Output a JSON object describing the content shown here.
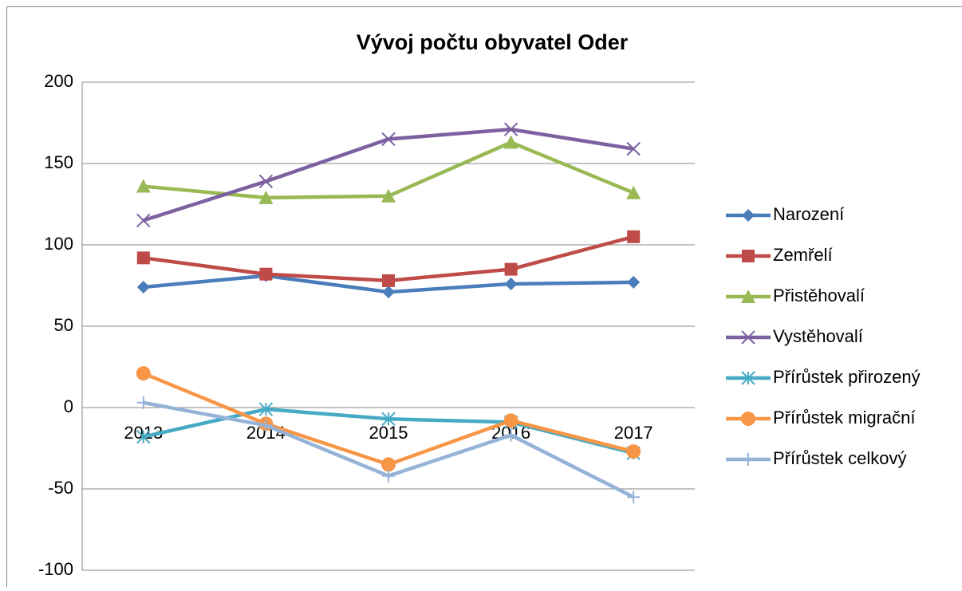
{
  "chart_data": {
    "type": "line",
    "title": "Vývoj počtu obyvatel Oder",
    "categories": [
      "2013",
      "2014",
      "2015",
      "2016",
      "2017"
    ],
    "series": [
      {
        "name": "Narození",
        "color": "#4a7ebb",
        "marker": "diamond",
        "values": [
          74,
          81,
          71,
          76,
          77
        ]
      },
      {
        "name": "Zemřelí",
        "color": "#be4b48",
        "marker": "square",
        "values": [
          92,
          82,
          78,
          85,
          105
        ]
      },
      {
        "name": "Přistěhovalí",
        "color": "#98b954",
        "marker": "triangle",
        "values": [
          136,
          129,
          130,
          163,
          132
        ]
      },
      {
        "name": "Vystěhovalí",
        "color": "#7d60a0",
        "marker": "x",
        "values": [
          115,
          139,
          165,
          171,
          159
        ]
      },
      {
        "name": "Přírůstek přirozený",
        "color": "#46aac5",
        "marker": "star",
        "values": [
          -18,
          -1,
          -7,
          -9,
          -28
        ]
      },
      {
        "name": "Přírůstek migrační",
        "color": "#f79646",
        "marker": "circle",
        "values": [
          21,
          -10,
          -35,
          -8,
          -27
        ]
      },
      {
        "name": "Přírůstek celkový",
        "color": "#95b3d7",
        "marker": "plus",
        "values": [
          3,
          -11,
          -42,
          -17,
          -55
        ]
      }
    ],
    "ylim": [
      -100,
      200
    ],
    "yticks": [
      -100,
      -50,
      0,
      50,
      100,
      150,
      200
    ],
    "grid": true,
    "legend": "right"
  }
}
